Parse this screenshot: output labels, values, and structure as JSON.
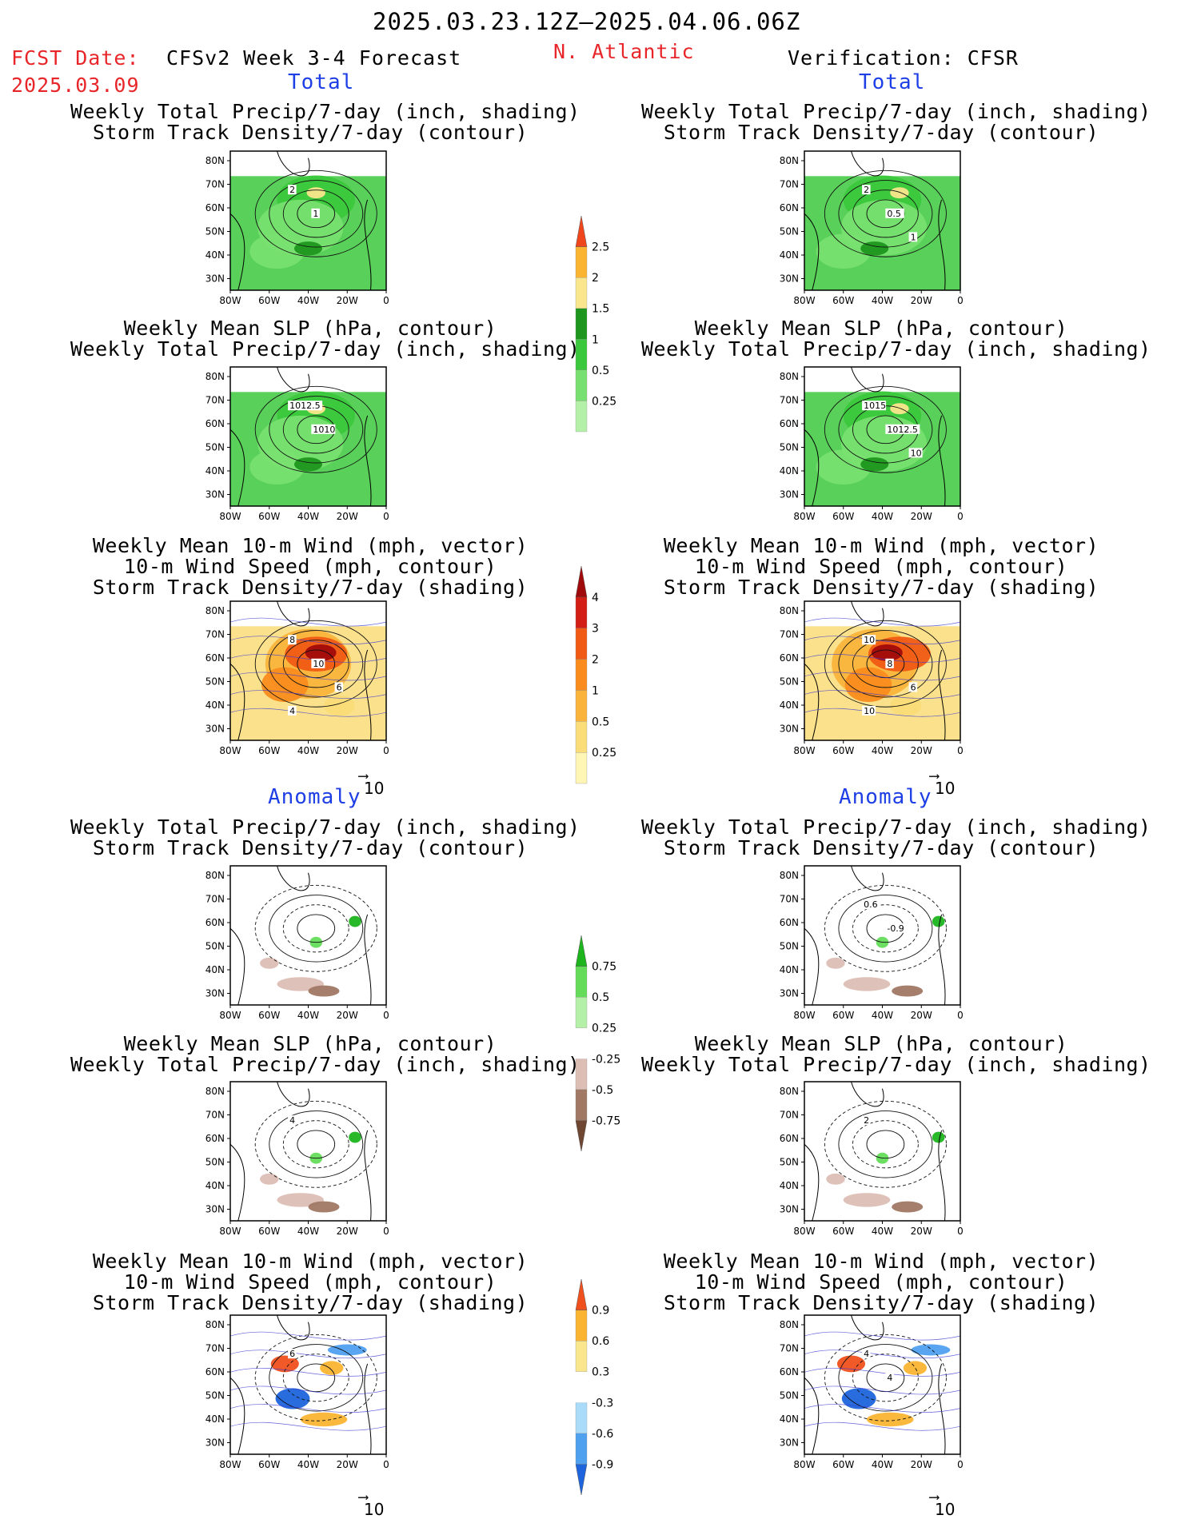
{
  "header": {
    "period": "2025.03.23.12Z–2025.04.06.06Z",
    "fcst_label": "FCST Date:",
    "fcst_date": "2025.03.09",
    "model": "CFSv2 Week 3-4 Forecast",
    "region": "N. Atlantic",
    "verification": "Verification: CFSR"
  },
  "sections": {
    "total": "Total",
    "anomaly": "Anomaly"
  },
  "panel_titles": {
    "precip_storm": [
      "Weekly Total Precip/7-day (inch, shading)",
      "Storm Track Density/7-day (contour)"
    ],
    "slp_precip": [
      "Weekly Mean SLP (hPa, contour)",
      "Weekly Total Precip/7-day (inch, shading)"
    ],
    "wind_storm": [
      "Weekly Mean 10-m Wind (mph, vector)",
      "10-m Wind Speed (mph, contour)",
      "Storm Track Density/7-day (shading)"
    ]
  },
  "vector_ref": "10",
  "chart_data": [
    {
      "type": "heatmap",
      "map_region": "N. Atlantic",
      "x_ticks": [
        "80W",
        "60W",
        "40W",
        "20W",
        "0"
      ],
      "y_ticks": [
        "80N",
        "70N",
        "60N",
        "50N",
        "40N",
        "30N"
      ],
      "panels": [
        {
          "id": "fc-total-precip-storm",
          "source": "CFSv2",
          "contour_labels": [
            "2",
            "1"
          ]
        },
        {
          "id": "ver-total-precip-storm",
          "source": "CFSR",
          "contour_labels": [
            "2",
            "0.5",
            "1"
          ]
        },
        {
          "id": "fc-total-slp-precip",
          "source": "CFSv2",
          "contour_labels": [
            "1012.5",
            "1010"
          ]
        },
        {
          "id": "ver-total-slp-precip",
          "source": "CFSR",
          "contour_labels": [
            "1015",
            "1012.5",
            "10"
          ]
        },
        {
          "id": "fc-total-wind-storm",
          "source": "CFSv2",
          "contour_labels": [
            "8",
            "10",
            "6",
            "4"
          ]
        },
        {
          "id": "ver-total-wind-storm",
          "source": "CFSR",
          "contour_labels": [
            "10",
            "8",
            "6",
            "10"
          ]
        },
        {
          "id": "fc-anom-precip-storm",
          "source": "CFSv2",
          "contour_labels": []
        },
        {
          "id": "ver-anom-precip-storm",
          "source": "CFSR",
          "contour_labels": [
            "0.6",
            "-0.9"
          ]
        },
        {
          "id": "fc-anom-slp-precip",
          "source": "CFSv2",
          "contour_labels": [
            "4"
          ]
        },
        {
          "id": "ver-anom-slp-precip",
          "source": "CFSR",
          "contour_labels": [
            "2"
          ]
        },
        {
          "id": "fc-anom-wind-storm",
          "source": "CFSv2",
          "contour_labels": [
            "6"
          ]
        },
        {
          "id": "ver-anom-wind-storm",
          "source": "CFSR",
          "contour_labels": [
            "4",
            "4"
          ]
        }
      ],
      "colorbars": [
        {
          "id": "total-precip",
          "levels": [
            "0.25",
            "0.5",
            "1",
            "1.5",
            "2",
            "2.5"
          ],
          "colors": [
            "#b4f0a8",
            "#78e070",
            "#3cc83c",
            "#1e961e",
            "#fae68c",
            "#fab432",
            "#f0461e"
          ]
        },
        {
          "id": "total-storm",
          "levels": [
            "0.25",
            "0.5",
            "1",
            "2",
            "3",
            "4"
          ],
          "colors": [
            "#fff5b4",
            "#fadc78",
            "#fab43c",
            "#fa8c1e",
            "#f05a14",
            "#d21e14",
            "#a00a0a"
          ]
        },
        {
          "id": "anom-precip",
          "levels": [
            "-0.75",
            "-0.5",
            "-0.25",
            "0.25",
            "0.5",
            "0.75"
          ],
          "colors": [
            "#6e4632",
            "#a07864",
            "#dcbeb4",
            "#ffffff",
            "#b4f0a8",
            "#64dc5a",
            "#1eb41e"
          ]
        },
        {
          "id": "anom-storm",
          "levels": [
            "-0.9",
            "-0.6",
            "-0.3",
            "0.3",
            "0.6",
            "0.9"
          ],
          "colors": [
            "#1e64dc",
            "#50a0f0",
            "#aadcfa",
            "#ffffff",
            "#fae68c",
            "#fab432",
            "#f0501e"
          ]
        }
      ]
    }
  ]
}
